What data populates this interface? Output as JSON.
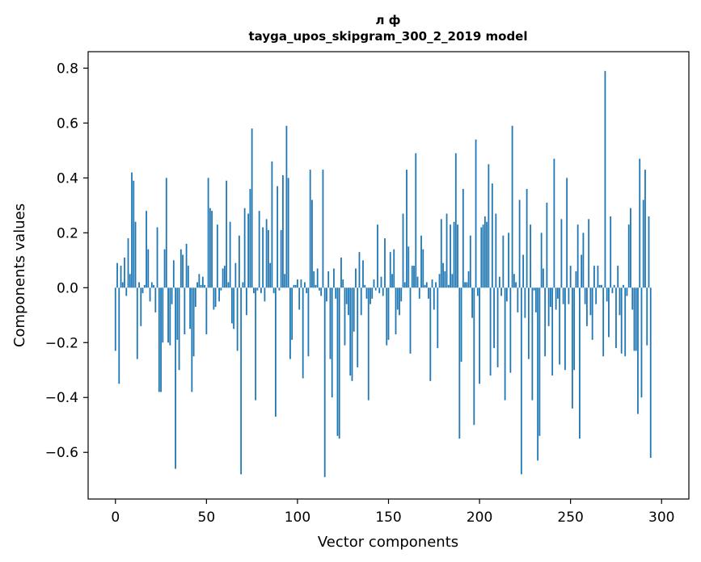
{
  "chart_data": {
    "type": "bar",
    "title_line1": "л ф",
    "title_line2": "tayga_upos_skipgram_300_2_2019 model",
    "xlabel": "Vector components",
    "ylabel": "Components values",
    "xlim": [
      -15,
      315
    ],
    "ylim": [
      -0.77,
      0.86
    ],
    "xticks": [
      0,
      50,
      100,
      150,
      200,
      250,
      300
    ],
    "xtick_labels": [
      "0",
      "50",
      "100",
      "150",
      "200",
      "250",
      "300"
    ],
    "yticks": [
      -0.6,
      -0.4,
      -0.2,
      0.0,
      0.2,
      0.4,
      0.6,
      0.8
    ],
    "ytick_labels": [
      "−0.6",
      "−0.4",
      "−0.2",
      "0.0",
      "0.2",
      "0.4",
      "0.6",
      "0.8"
    ],
    "bar_color": "#1f77b4",
    "values": [
      -0.23,
      0.09,
      -0.35,
      0.08,
      0.02,
      0.11,
      -0.03,
      0.18,
      0.05,
      0.42,
      0.39,
      0.24,
      -0.26,
      0.02,
      -0.14,
      -0.02,
      0.01,
      0.28,
      0.14,
      -0.05,
      0.02,
      0.01,
      -0.09,
      0.22,
      -0.38,
      -0.38,
      -0.2,
      0.14,
      0.4,
      -0.2,
      -0.21,
      -0.06,
      0.1,
      -0.66,
      -0.19,
      -0.3,
      0.14,
      0.12,
      -0.17,
      0.16,
      0.08,
      -0.15,
      -0.38,
      -0.25,
      -0.07,
      0.02,
      0.05,
      0.01,
      0.04,
      0.01,
      -0.17,
      0.4,
      0.29,
      0.28,
      -0.08,
      -0.07,
      0.23,
      -0.05,
      -0.01,
      0.07,
      0.08,
      0.39,
      0.02,
      0.24,
      -0.13,
      -0.15,
      0.09,
      -0.23,
      0.19,
      -0.68,
      0.02,
      0.29,
      -0.1,
      0.27,
      0.36,
      0.58,
      -0.02,
      -0.41,
      -0.01,
      0.28,
      -0.02,
      0.22,
      -0.05,
      0.25,
      0.21,
      0.09,
      0.46,
      -0.02,
      -0.47,
      0.37,
      -0.01,
      0.21,
      0.41,
      0.05,
      0.59,
      0.4,
      -0.26,
      -0.19,
      0.01,
      0.01,
      0.03,
      -0.08,
      0.03,
      -0.33,
      0.02,
      -0.02,
      -0.25,
      0.43,
      0.32,
      0.06,
      0.01,
      0.07,
      -0.01,
      -0.03,
      0.43,
      -0.69,
      -0.05,
      0.06,
      -0.26,
      -0.4,
      0.07,
      -0.04,
      -0.54,
      -0.55,
      0.11,
      0.03,
      -0.21,
      -0.06,
      -0.1,
      -0.32,
      -0.34,
      -0.16,
      0.07,
      -0.29,
      0.13,
      -0.1,
      0.1,
      0.01,
      -0.04,
      -0.41,
      -0.06,
      -0.04,
      0.03,
      -0.01,
      0.23,
      -0.02,
      0.04,
      -0.03,
      0.18,
      -0.21,
      -0.19,
      0.13,
      0.05,
      0.14,
      -0.17,
      -0.08,
      -0.1,
      -0.05,
      0.27,
      0.02,
      0.43,
      0.15,
      -0.24,
      0.08,
      0.08,
      0.49,
      0.04,
      -0.04,
      0.19,
      0.14,
      0.01,
      0.02,
      -0.04,
      -0.34,
      0.03,
      -0.08,
      0.02,
      -0.22,
      0.05,
      0.25,
      0.09,
      0.06,
      0.27,
      0.01,
      0.23,
      0.05,
      0.24,
      0.49,
      0.23,
      -0.55,
      -0.27,
      0.36,
      0.02,
      0.02,
      0.06,
      0.19,
      -0.11,
      -0.5,
      0.54,
      -0.03,
      -0.35,
      0.22,
      0.23,
      0.26,
      0.24,
      0.45,
      -0.32,
      0.38,
      -0.22,
      0.27,
      -0.29,
      0.04,
      -0.03,
      0.19,
      -0.41,
      -0.05,
      0.2,
      -0.31,
      0.59,
      0.05,
      0.02,
      -0.09,
      0.32,
      -0.68,
      0.12,
      -0.11,
      0.36,
      -0.26,
      0.23,
      -0.41,
      -0.01,
      -0.09,
      -0.63,
      -0.54,
      0.2,
      0.07,
      -0.25,
      0.31,
      -0.14,
      -0.07,
      -0.32,
      0.47,
      -0.08,
      -0.04,
      -0.28,
      0.25,
      -0.06,
      -0.3,
      0.4,
      -0.06,
      0.08,
      -0.44,
      -0.3,
      0.06,
      0.23,
      -0.55,
      0.12,
      0.2,
      -0.06,
      -0.14,
      0.25,
      -0.1,
      -0.19,
      0.08,
      -0.06,
      0.08,
      0.01,
      0.01,
      -0.25,
      0.79,
      -0.05,
      -0.18,
      0.26,
      -0.02,
      0.01,
      -0.22,
      0.08,
      -0.1,
      -0.24,
      0.01,
      -0.25,
      -0.03,
      0.23,
      0.29,
      -0.08,
      -0.23,
      -0.23,
      -0.46,
      0.47,
      -0.4,
      0.32,
      0.43,
      -0.21,
      0.26,
      -0.62
    ]
  }
}
